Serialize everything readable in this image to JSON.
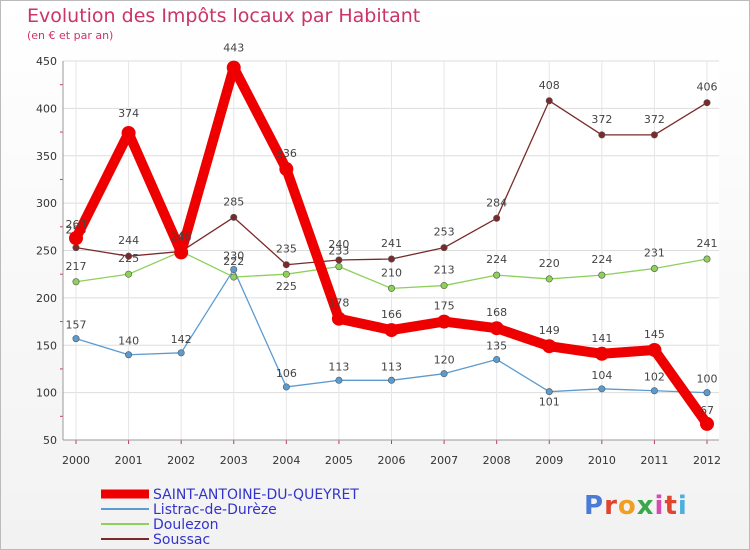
{
  "title": "Evolution des Impôts locaux par Habitant",
  "subtitle": "(en € et par an)",
  "logo": {
    "text": "Proxiti",
    "colors": [
      "#4b7bd6",
      "#e0452f",
      "#f0a020",
      "#3aa84a",
      "#d64bb0",
      "#e0452f",
      "#4bb0e0"
    ]
  },
  "chart_data": {
    "type": "line",
    "x": [
      2000,
      2001,
      2002,
      2003,
      2004,
      2005,
      2006,
      2007,
      2008,
      2009,
      2010,
      2011,
      2012
    ],
    "xticks": [
      "2000",
      "2001",
      "2002",
      "2003",
      "2004",
      "2005",
      "2006",
      "2007",
      "2008",
      "2009",
      "2010",
      "2011",
      "2012"
    ],
    "ylim": [
      50,
      450
    ],
    "yticks": [
      "50",
      "100",
      "150",
      "200",
      "250",
      "300",
      "350",
      "400",
      "450"
    ],
    "grid": true,
    "legend": "bottom-left",
    "series": [
      {
        "name": "SAINT-ANTOINE-DU-QUEYRET",
        "color": "#ee0000",
        "labelColor": "#3333cc",
        "values": [
          263,
          374,
          248,
          443,
          336,
          178,
          166,
          175,
          168,
          149,
          141,
          145,
          67
        ],
        "labels": [
          "263",
          "374",
          "248",
          "443",
          "336",
          "178",
          "166",
          "175",
          "168",
          "149",
          "141",
          "145",
          "67"
        ]
      },
      {
        "name": "Listrac-de-Durèze",
        "color": "#5b9bd0",
        "labelColor": "#3333cc",
        "values": [
          157,
          140,
          142,
          230,
          106,
          113,
          113,
          120,
          135,
          101,
          104,
          102,
          100
        ],
        "labels": [
          "157",
          "140",
          "142",
          "230",
          "106",
          "113",
          "113",
          "120",
          "135",
          "101",
          "104",
          "102",
          "100"
        ]
      },
      {
        "name": "Doulezon",
        "color": "#8ed05a",
        "labelColor": "#3333cc",
        "values": [
          217,
          225,
          249,
          222,
          225,
          233,
          210,
          213,
          224,
          220,
          224,
          231,
          241
        ],
        "labels": [
          "217",
          "225",
          "249",
          "222",
          "225",
          "233",
          "210",
          "213",
          "224",
          "220",
          "224",
          "231",
          "241"
        ]
      },
      {
        "name": "Soussac",
        "color": "#7a2a2a",
        "labelColor": "#3333cc",
        "values": [
          253,
          244,
          249,
          285,
          235,
          240,
          241,
          253,
          284,
          408,
          372,
          372,
          406
        ],
        "labels": [
          "253",
          "244",
          "249",
          "285",
          "235",
          "240",
          "241",
          "253",
          "284",
          "408",
          "372",
          "372",
          "406"
        ]
      }
    ]
  }
}
